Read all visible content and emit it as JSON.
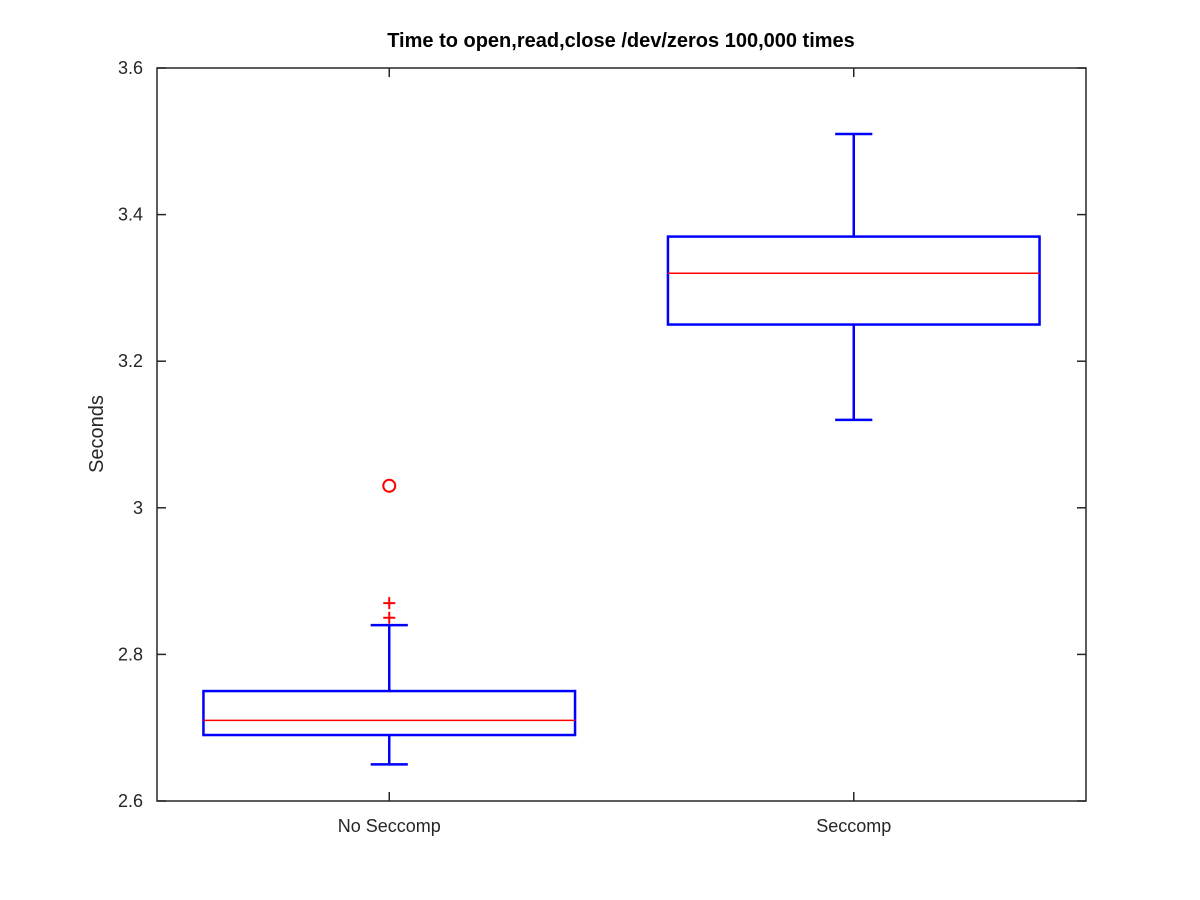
{
  "chart_data": {
    "type": "box",
    "title": "Time to open,read,close /dev/zeros 100,000 times",
    "xlabel": "",
    "ylabel": "Seconds",
    "ylim": [
      2.6,
      3.6
    ],
    "yticks": [
      "2.6",
      "2.8",
      "3",
      "3.2",
      "3.4",
      "3.6"
    ],
    "categories": [
      "No Seccomp",
      "Seccomp"
    ],
    "boxes": [
      {
        "category": "No Seccomp",
        "whisker_low": 2.65,
        "q1": 2.69,
        "median": 2.71,
        "q3": 2.75,
        "whisker_high": 2.84,
        "outliers": [
          2.85,
          2.87
        ],
        "far_outliers": [
          3.03
        ]
      },
      {
        "category": "Seccomp",
        "whisker_low": 3.12,
        "q1": 3.25,
        "median": 3.32,
        "q3": 3.37,
        "whisker_high": 3.51,
        "outliers": [],
        "far_outliers": []
      }
    ],
    "colors": {
      "box": "#0000ff",
      "median": "#ff0000",
      "outlier": "#ff0000",
      "axis": "#262626"
    },
    "grid": false,
    "legend": "none"
  }
}
